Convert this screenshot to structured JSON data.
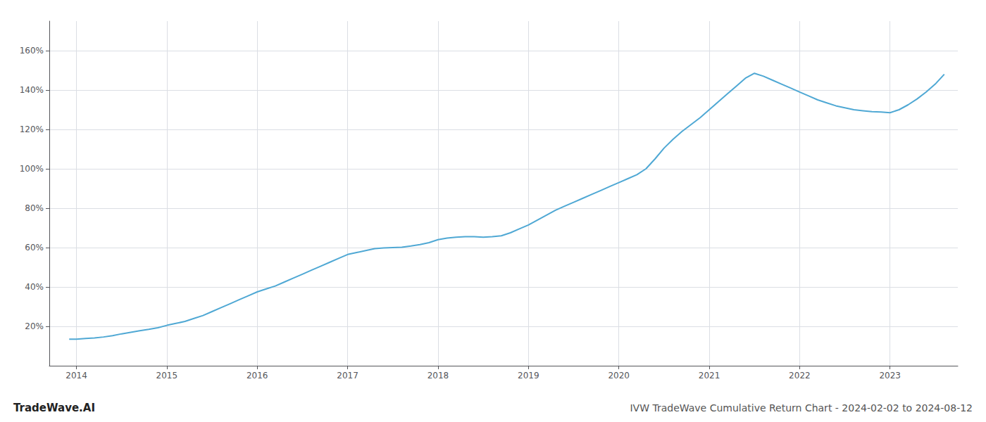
{
  "chart_data": {
    "type": "line",
    "title": "IVW TradeWave Cumulative Return Chart - 2024-02-02 to 2024-08-12",
    "annotations": [
      "TradeWave.AI"
    ],
    "color": "#4fa8d4",
    "grid": true,
    "x": [
      2013.92,
      2014.0,
      2014.1,
      2014.2,
      2014.3,
      2014.4,
      2014.5,
      2014.6,
      2014.7,
      2014.8,
      2014.9,
      2015.0,
      2015.1,
      2015.2,
      2015.3,
      2015.4,
      2015.5,
      2015.6,
      2015.7,
      2015.8,
      2015.9,
      2016.0,
      2016.1,
      2016.2,
      2016.3,
      2016.4,
      2016.5,
      2016.6,
      2016.7,
      2016.8,
      2016.9,
      2017.0,
      2017.1,
      2017.2,
      2017.3,
      2017.4,
      2017.5,
      2017.6,
      2017.7,
      2017.8,
      2017.9,
      2018.0,
      2018.1,
      2018.2,
      2018.3,
      2018.4,
      2018.5,
      2018.6,
      2018.7,
      2018.8,
      2018.9,
      2019.0,
      2019.1,
      2019.2,
      2019.3,
      2019.4,
      2019.5,
      2019.6,
      2019.7,
      2019.8,
      2019.9,
      2020.0,
      2020.1,
      2020.2,
      2020.3,
      2020.4,
      2020.5,
      2020.6,
      2020.7,
      2020.8,
      2020.9,
      2021.0,
      2021.1,
      2021.2,
      2021.3,
      2021.4,
      2021.5,
      2021.6,
      2021.7,
      2021.8,
      2021.9,
      2022.0,
      2022.1,
      2022.2,
      2022.3,
      2022.4,
      2022.5,
      2022.6,
      2022.7,
      2022.8,
      2022.9,
      2023.0,
      2023.1,
      2023.2,
      2023.3,
      2023.4,
      2023.5,
      2023.6
    ],
    "values": [
      13.5,
      13.5,
      13.8,
      14.1,
      14.6,
      15.3,
      16.2,
      17.0,
      17.8,
      18.5,
      19.3,
      20.5,
      21.5,
      22.5,
      24.0,
      25.5,
      27.5,
      29.5,
      31.5,
      33.5,
      35.5,
      37.5,
      39.0,
      40.5,
      42.5,
      44.5,
      46.5,
      48.5,
      50.5,
      52.5,
      54.5,
      56.5,
      57.5,
      58.5,
      59.5,
      59.8,
      60.0,
      60.2,
      60.8,
      61.5,
      62.5,
      64.0,
      64.8,
      65.3,
      65.5,
      65.5,
      65.3,
      65.5,
      66.0,
      67.5,
      69.5,
      71.5,
      74.0,
      76.5,
      79.0,
      81.0,
      83.0,
      85.0,
      87.0,
      89.0,
      91.0,
      93.0,
      95.0,
      97.0,
      100.0,
      105.0,
      110.5,
      115.0,
      119.0,
      122.5,
      126.0,
      130.0,
      134.0,
      138.0,
      142.0,
      146.0,
      148.5,
      147.0,
      145.0,
      143.0,
      141.0,
      139.0,
      137.0,
      135.0,
      133.5,
      132.0,
      131.0,
      130.0,
      129.5,
      129.0,
      128.8,
      128.5,
      130.0,
      132.5,
      135.5,
      139.0,
      143.0,
      148.0
    ],
    "xlim": [
      2013.7,
      2023.75
    ],
    "xticks": [
      2014,
      2015,
      2016,
      2017,
      2018,
      2019,
      2020,
      2021,
      2022,
      2023
    ],
    "ylim": [
      0,
      175
    ],
    "yticks": [
      {
        "value": 20,
        "label": "20%"
      },
      {
        "value": 40,
        "label": "40%"
      },
      {
        "value": 60,
        "label": "60%"
      },
      {
        "value": 80,
        "label": "80%"
      },
      {
        "value": 100,
        "label": "100%"
      },
      {
        "value": 120,
        "label": "120%"
      },
      {
        "value": 140,
        "label": "140%"
      },
      {
        "value": 160,
        "label": "160%"
      }
    ]
  }
}
